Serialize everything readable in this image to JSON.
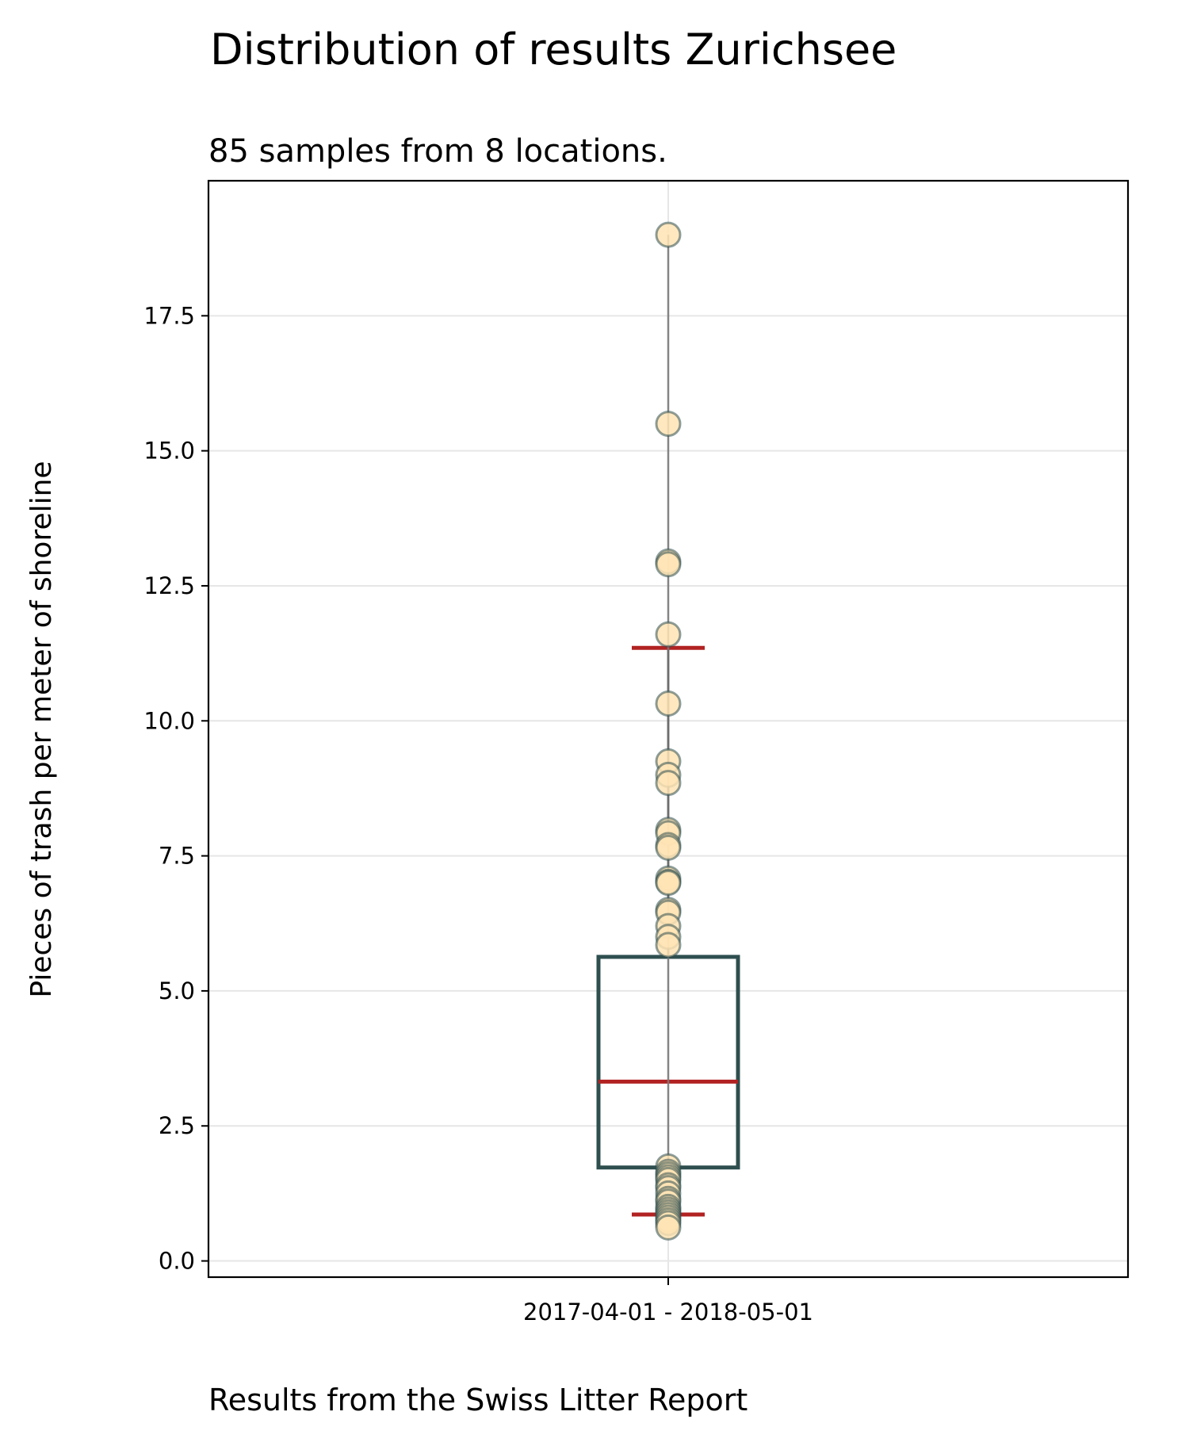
{
  "chart_data": {
    "type": "box",
    "title": "Distribution of results Zurichsee",
    "subtitle": "85 samples from 8 locations.",
    "ylabel": "Pieces of trash per meter of shoreline",
    "caption": "Results from the Swiss Litter Report",
    "categories": [
      "2017-04-01 - 2018-05-01"
    ],
    "ylim": [
      -0.3,
      20.0
    ],
    "yticks": [
      "0.0",
      "2.5",
      "5.0",
      "7.5",
      "10.0",
      "12.5",
      "15.0",
      "17.5"
    ],
    "grid": true,
    "box": {
      "q1": 1.73,
      "median": 3.32,
      "q3": 5.63,
      "whisker_low": 0.86,
      "whisker_high": 11.35
    },
    "points": [
      19.0,
      15.5,
      12.95,
      12.9,
      11.6,
      10.32,
      9.25,
      9.0,
      8.85,
      7.98,
      7.92,
      7.7,
      7.65,
      7.08,
      7.02,
      7.0,
      6.5,
      6.45,
      6.2,
      6.0,
      5.85,
      1.75,
      1.65,
      1.6,
      1.55,
      1.5,
      1.4,
      1.35,
      1.25,
      1.15,
      1.1,
      1.0,
      0.95,
      0.9,
      0.85,
      0.8,
      0.75,
      0.7,
      0.62
    ],
    "colors": {
      "box": "#2f4f4f",
      "median": "#b22222",
      "whisker": "#000000",
      "whisker_cap": "#b22222",
      "point_fill": "#ffe4b5",
      "point_edge": "#2f4f4f",
      "grid": "#e6e6e6"
    }
  }
}
